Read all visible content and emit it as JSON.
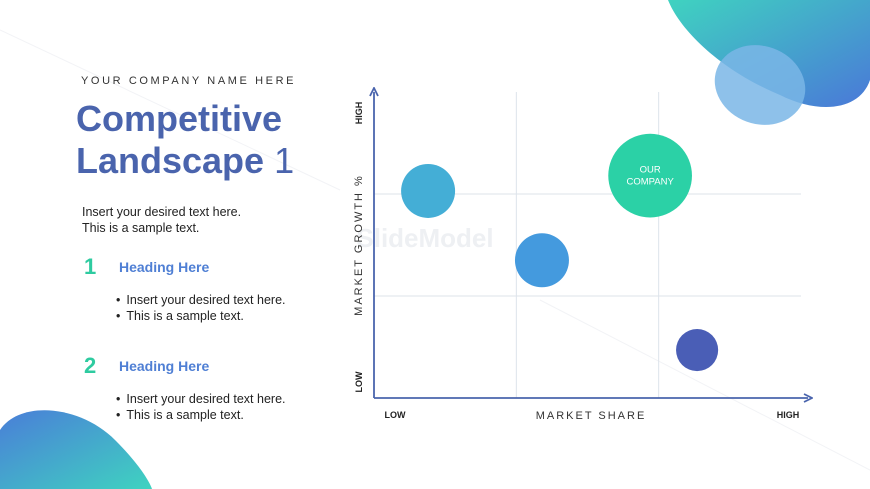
{
  "header": {
    "company": "YOUR COMPANY NAME HERE",
    "title_line1": "Competitive",
    "title_line2": "Landscape",
    "title_number": "1"
  },
  "intro": {
    "line1": "Insert your desired text here.",
    "line2": "This is a sample text."
  },
  "steps": [
    {
      "number": "1",
      "heading": "Heading Here",
      "bullets": [
        "Insert your desired text here.",
        "This is a sample text."
      ]
    },
    {
      "number": "2",
      "heading": "Heading Here",
      "bullets": [
        "Insert your desired text here.",
        "This is a sample text."
      ]
    }
  ],
  "colors": {
    "title": "#4a64ad",
    "step_number": "#2ecba0",
    "heading": "#4f7fd4",
    "axis": "#4a64ad",
    "grid": "#dde3ea",
    "accent_teal": "#3fd3c0",
    "accent_blue": "#4a78d8"
  },
  "watermark": "SlideModel",
  "chart_data": {
    "type": "scatter",
    "xlabel": "MARKET SHARE",
    "ylabel": "MARKET GROWTH %",
    "x_ticks": {
      "low": "LOW",
      "high": "HIGH"
    },
    "y_ticks": {
      "low": "LOW",
      "high": "HIGH"
    },
    "xlim": [
      0,
      3
    ],
    "ylim": [
      0,
      3
    ],
    "grid": true,
    "points": [
      {
        "x": 0.38,
        "y": 2.03,
        "size": 1.0,
        "color": "#44aed6",
        "label": ""
      },
      {
        "x": 1.18,
        "y": 1.35,
        "size": 1.0,
        "color": "#449ade",
        "label": ""
      },
      {
        "x": 1.94,
        "y": 2.18,
        "size": 1.55,
        "color": "#2bd1a6",
        "label": "OUR\nCOMPANY"
      },
      {
        "x": 2.27,
        "y": 0.47,
        "size": 0.78,
        "color": "#4a5eb6",
        "label": ""
      }
    ]
  }
}
